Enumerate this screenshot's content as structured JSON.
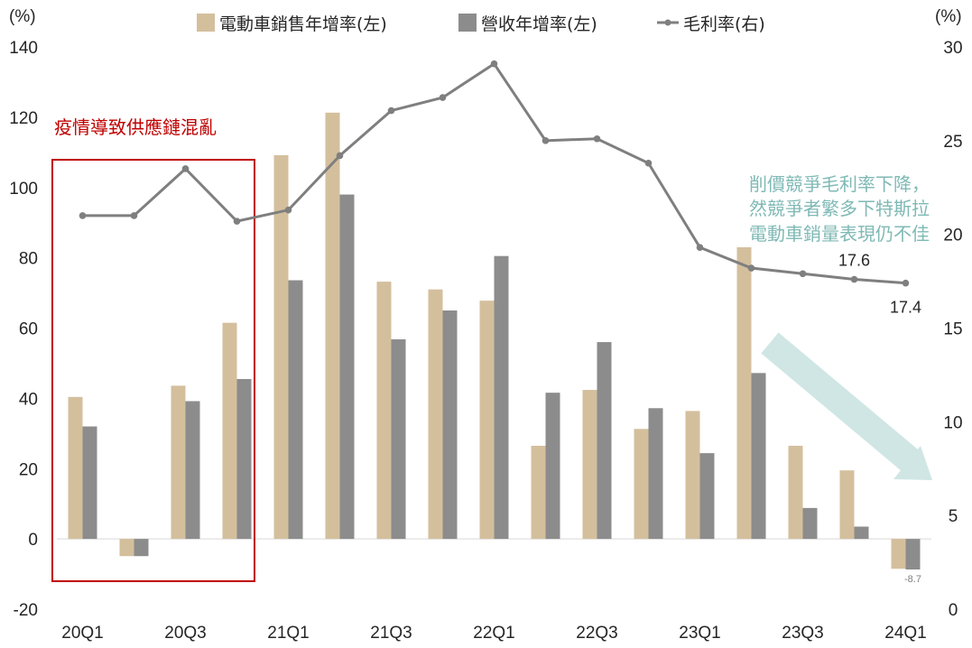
{
  "chart_data": {
    "type": "bar",
    "categories": [
      "20Q1",
      "20Q2",
      "20Q3",
      "20Q4",
      "21Q1",
      "21Q2",
      "21Q3",
      "21Q4",
      "22Q1",
      "22Q2",
      "22Q3",
      "22Q4",
      "23Q1",
      "23Q2",
      "23Q3",
      "23Q4",
      "24Q1"
    ],
    "x_tick_labels": [
      "20Q1",
      "",
      "20Q3",
      "",
      "21Q1",
      "",
      "21Q3",
      "",
      "22Q1",
      "",
      "22Q3",
      "",
      "23Q1",
      "",
      "23Q3",
      "",
      "24Q1"
    ],
    "series": [
      {
        "name": "電動車銷售年增率(左)",
        "kind": "bar",
        "axis": "left",
        "color": "#d4bf9d",
        "values": [
          40.4,
          -4.9,
          43.6,
          61.5,
          109.2,
          121.3,
          73.2,
          71.0,
          67.8,
          26.5,
          42.4,
          31.3,
          36.4,
          83.0,
          26.5,
          19.5,
          -8.5
        ]
      },
      {
        "name": "營收年增率(左)",
        "kind": "bar",
        "axis": "left",
        "color": "#8c8c8c",
        "values": [
          32.0,
          -4.9,
          39.2,
          45.5,
          73.6,
          98.0,
          56.8,
          65.0,
          80.5,
          41.6,
          56.0,
          37.2,
          24.4,
          47.2,
          8.8,
          3.5,
          -8.7
        ]
      },
      {
        "name": "毛利率(右)",
        "kind": "line",
        "axis": "right",
        "color": "#7f7f7f",
        "values": [
          21.0,
          21.0,
          23.5,
          20.7,
          21.3,
          24.2,
          26.6,
          27.3,
          29.1,
          25.0,
          25.1,
          23.8,
          19.3,
          18.2,
          17.9,
          17.6,
          17.4
        ]
      }
    ],
    "y_left": {
      "unit": "(%)",
      "range": [
        -20,
        140
      ],
      "ticks": [
        -20,
        0,
        20,
        40,
        60,
        80,
        100,
        120,
        140
      ]
    },
    "y_right": {
      "unit": "(%)",
      "range": [
        0,
        30
      ],
      "ticks": [
        0,
        5,
        10,
        15,
        20,
        25,
        30
      ]
    },
    "legend_position": "top",
    "grid": false,
    "data_labels": [
      {
        "series": "營收年增率(左)",
        "category": "24Q1",
        "text": "-8.7"
      },
      {
        "series": "毛利率(右)",
        "category": "23Q4",
        "text": "17.6"
      },
      {
        "series": "毛利率(右)",
        "category": "24Q1",
        "text": "17.4"
      }
    ],
    "annotations": {
      "box": {
        "text": "疫情導致供應鏈混亂",
        "from": "20Q1",
        "to": "20Q4",
        "color": "#c00000"
      },
      "arrow": {
        "lines": [
          "削價競爭毛利率下降，",
          "然競爭者繁多下特斯拉",
          "電動車銷量表現仍不佳"
        ],
        "color": "#cfe6e4",
        "text_color": "#7fb9b5"
      }
    }
  }
}
